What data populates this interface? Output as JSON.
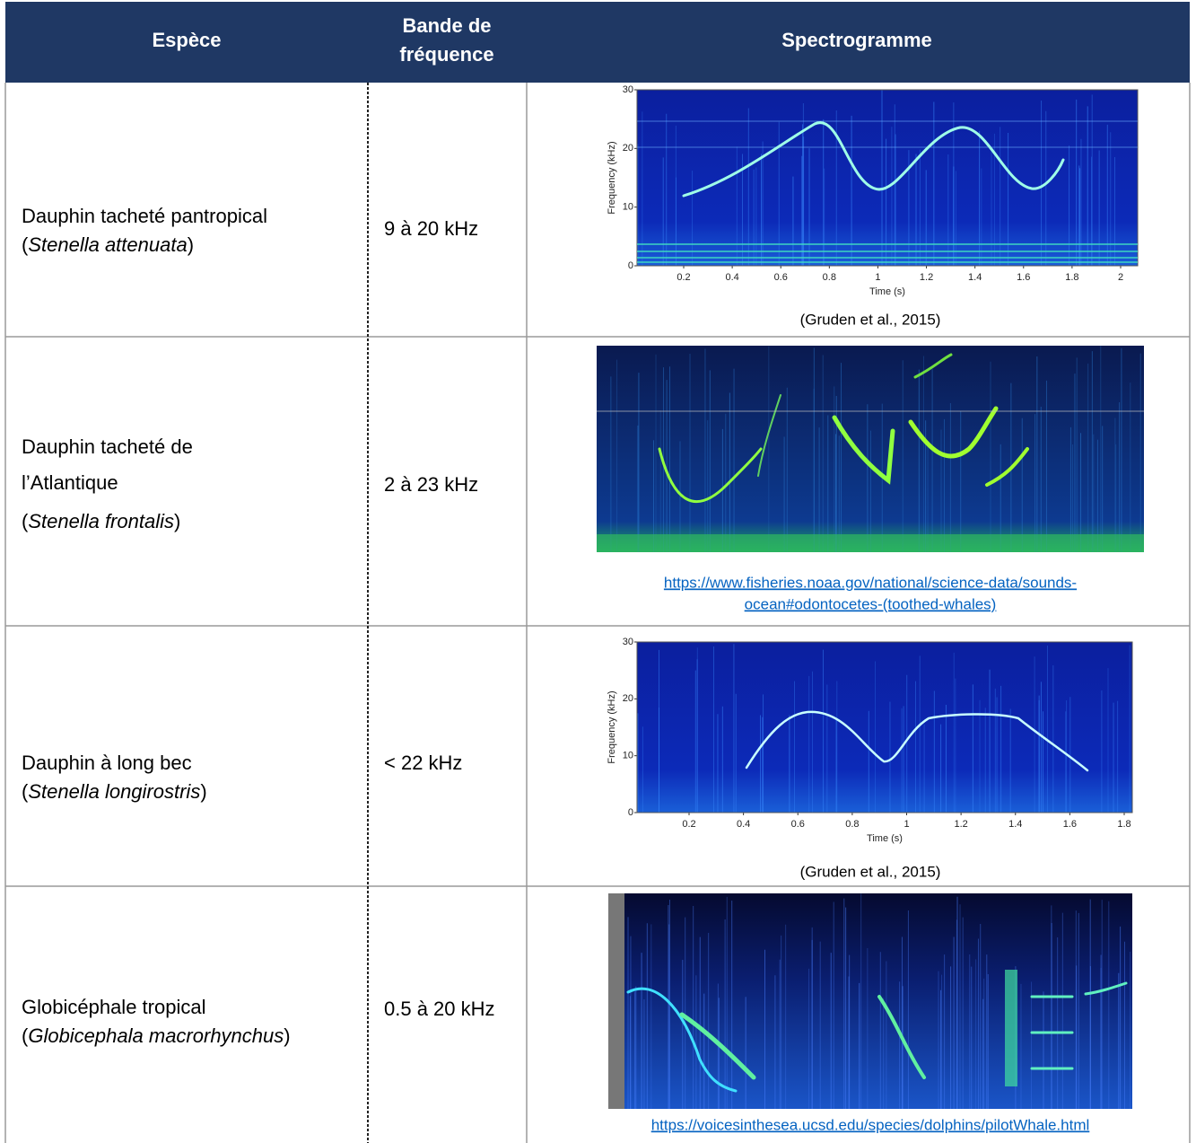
{
  "header": {
    "species": "Espèce",
    "band": [
      "Bande de",
      "fréquence"
    ],
    "spectrogram": "Spectrogramme"
  },
  "rows": [
    {
      "species": [
        "Dauphin tacheté pantropical"
      ],
      "latin": {
        "open": "(",
        "name": "Stenella attenuata",
        "close": ")"
      },
      "band": "9 à 20 kHz",
      "figure": {
        "y_label": "Frequency (kHz)",
        "x_label": "Time (s)",
        "yticks": [
          0,
          10,
          20,
          30
        ],
        "xticks": [
          0.2,
          0.4,
          0.6,
          0.8,
          1,
          1.2,
          1.4,
          1.6,
          1.8,
          2
        ]
      },
      "source": [
        "(Gruden et al., 2015)"
      ]
    },
    {
      "species": [
        "Dauphin tacheté de",
        "l’Atlantique"
      ],
      "latin": {
        "open": "(",
        "name": "Stenella frontalis",
        "close": ")"
      },
      "band": "2 à 23 kHz",
      "source_link": [
        "https://www.fisheries.noaa.gov/national/science-data/sounds-",
        "ocean#odontocetes-(toothed-whales)"
      ]
    },
    {
      "species": [
        "Dauphin à long bec"
      ],
      "latin": {
        "open": "(",
        "name": "Stenella longirostris",
        "close": ")"
      },
      "band": "< 22 kHz",
      "figure": {
        "y_label": "Frequency (kHz)",
        "x_label": "Time (s)",
        "yticks": [
          0,
          10,
          20,
          30
        ],
        "xticks": [
          0.2,
          0.4,
          0.6,
          0.8,
          1,
          1.2,
          1.4,
          1.6,
          1.8
        ]
      },
      "source": [
        "(Gruden et al., 2015)"
      ]
    },
    {
      "species": [
        "Globicéphale tropical"
      ],
      "latin": {
        "open": "(",
        "name": "Globicephala macrorhynchus",
        "close": ")"
      },
      "band": "0.5 à 20 kHz",
      "source_link": [
        "https://voicesinthesea.ucsd.edu/species/dolphins/pilotWhale.html"
      ]
    }
  ]
}
